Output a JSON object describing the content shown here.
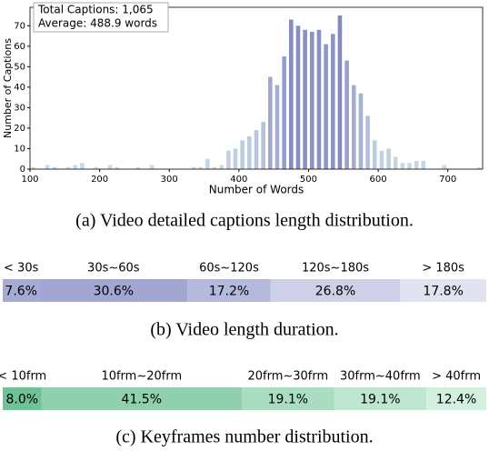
{
  "chart_data": [
    {
      "type": "histogram",
      "caption": "(a) Video detailed captions length distribution.",
      "xlabel": "Number of Words",
      "ylabel": "Number of Captions",
      "annotations": [
        "Total Captions: 1,065",
        "Average: 488.9 words"
      ],
      "bins": [
        100,
        110,
        120,
        130,
        140,
        150,
        160,
        170,
        180,
        190,
        200,
        210,
        220,
        230,
        240,
        250,
        260,
        270,
        280,
        290,
        300,
        310,
        320,
        330,
        340,
        350,
        360,
        370,
        380,
        390,
        400,
        410,
        420,
        430,
        440,
        450,
        460,
        470,
        480,
        490,
        500,
        510,
        520,
        530,
        540,
        550,
        560,
        570,
        580,
        590,
        600,
        610,
        620,
        630,
        640,
        650,
        660,
        670,
        680,
        690,
        700,
        710,
        720,
        730,
        740,
        750
      ],
      "values": [
        1,
        0,
        2,
        1,
        0,
        1,
        2,
        3,
        0,
        1,
        0,
        2,
        1,
        0,
        0,
        1,
        0,
        2,
        0,
        0,
        0,
        0,
        0,
        1,
        1,
        5,
        1,
        2,
        9,
        10,
        14,
        16,
        19,
        23,
        45,
        41,
        55,
        73,
        70,
        68,
        67,
        68,
        61,
        66,
        75,
        53,
        41,
        37,
        26,
        14,
        9,
        10,
        6,
        3,
        3,
        4,
        4,
        0,
        0,
        2,
        0,
        0,
        0,
        0,
        1
      ],
      "colormap": [
        "#c9dbe8",
        "#8489c0"
      ],
      "xlim": [
        100,
        750
      ],
      "ylim": [
        0,
        79
      ],
      "xticks": [
        100,
        200,
        300,
        400,
        500,
        600,
        700
      ],
      "yticks": [
        0,
        10,
        20,
        30,
        40,
        50,
        60,
        70
      ]
    },
    {
      "type": "stacked-bar",
      "caption": "(b) Video length duration.",
      "categories": [
        "< 30s",
        "30s~60s",
        "60s~120s",
        "120s~180s",
        "> 180s"
      ],
      "values": [
        7.6,
        30.6,
        17.2,
        26.8,
        17.8
      ],
      "value_labels": [
        "7.6%",
        "30.6%",
        "17.2%",
        "26.8%",
        "17.8%"
      ],
      "colors": [
        "#a6abd4",
        "#a2a6d2",
        "#b5b9dd",
        "#cdd0e6",
        "#e1e3f0"
      ]
    },
    {
      "type": "stacked-bar",
      "caption": "(c) Keyframes number distribution.",
      "categories": [
        "< 10frm",
        "10frm~20frm",
        "20frm~30frm",
        "30frm~40frm",
        "> 40frm"
      ],
      "values": [
        8.0,
        41.5,
        19.1,
        19.1,
        12.4
      ],
      "value_labels": [
        "8.0%",
        "41.5%",
        "19.1%",
        "19.1%",
        "12.4%"
      ],
      "colors": [
        "#6fc196",
        "#90d0ae",
        "#aadcc1",
        "#bfe6d0",
        "#d3efdf"
      ]
    }
  ]
}
